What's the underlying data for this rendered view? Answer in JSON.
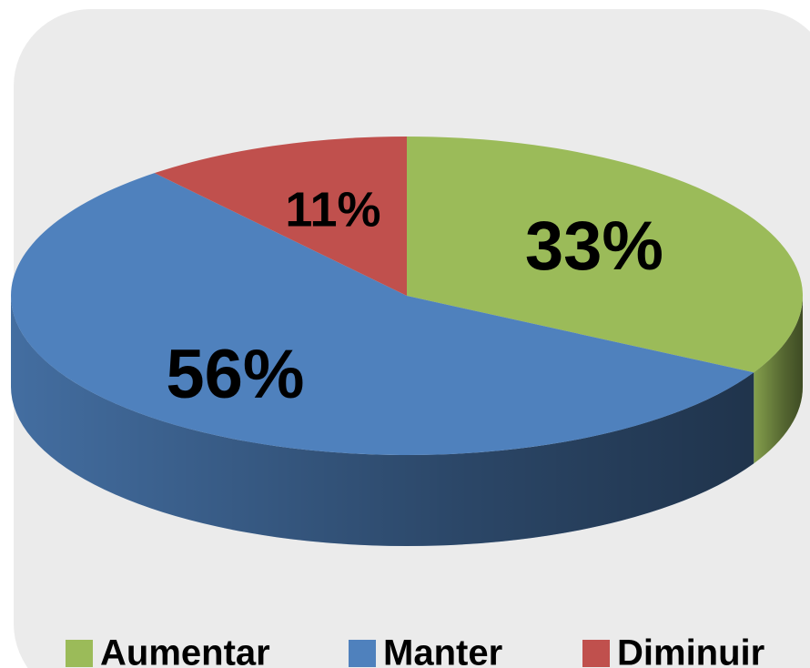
{
  "chart_data": {
    "type": "pie",
    "categories": [
      "Aumentar",
      "Manter",
      "Diminuir"
    ],
    "values": [
      33,
      56,
      11
    ],
    "value_labels": [
      "33%",
      "56%",
      "11%"
    ],
    "colors": [
      "#9bbb59",
      "#4f81bd",
      "#c0504d"
    ],
    "legend": "bottom"
  }
}
